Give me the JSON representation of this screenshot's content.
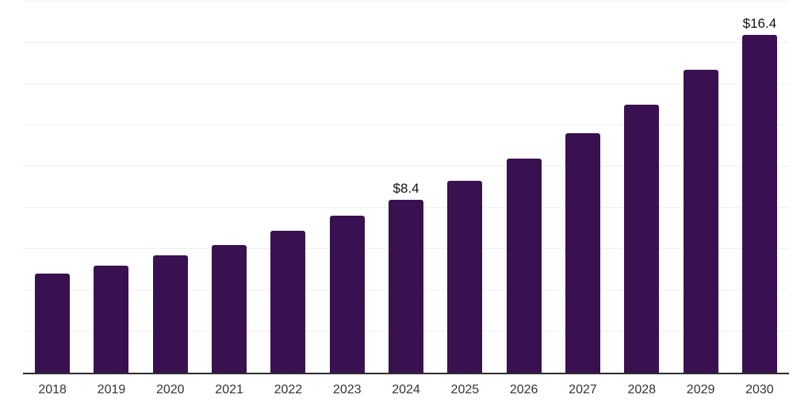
{
  "chart_data": {
    "type": "bar",
    "categories": [
      "2018",
      "2019",
      "2020",
      "2021",
      "2022",
      "2023",
      "2024",
      "2025",
      "2026",
      "2027",
      "2028",
      "2029",
      "2030"
    ],
    "values": [
      4.8,
      5.2,
      5.7,
      6.2,
      6.9,
      7.6,
      8.4,
      9.3,
      10.4,
      11.6,
      13.0,
      14.7,
      16.4
    ],
    "bar_labels": [
      "",
      "",
      "",
      "",
      "",
      "",
      "$8.4",
      "",
      "",
      "",
      "",
      "",
      "$16.4"
    ],
    "title": "",
    "xlabel": "",
    "ylabel": "",
    "ylim": [
      0,
      18
    ],
    "gridline_step": 2,
    "grid": true,
    "legend": "none",
    "y_axis_tick_labels_visible": false,
    "colors": {
      "bar": "#3a1150",
      "gridline": "#f0f0f0",
      "axis_line": "#2d2d2d",
      "tick_label": "#333333",
      "value_label": "#111111",
      "background": "#ffffff"
    }
  }
}
